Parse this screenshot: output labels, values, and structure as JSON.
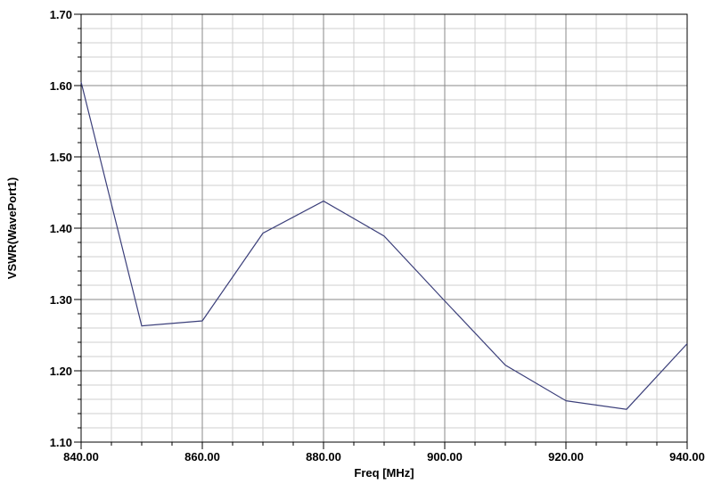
{
  "chart_data": {
    "type": "line",
    "xlabel": "Freq [MHz]",
    "ylabel": "VSWR(WavePort1)",
    "xlim": [
      840,
      940
    ],
    "ylim": [
      1.1,
      1.7
    ],
    "x_ticks": [
      840,
      860,
      880,
      900,
      920,
      940
    ],
    "x_tick_labels": [
      "840.00",
      "860.00",
      "880.00",
      "900.00",
      "920.00",
      "940.00"
    ],
    "y_ticks": [
      1.1,
      1.2,
      1.3,
      1.4,
      1.5,
      1.6,
      1.7
    ],
    "y_tick_labels": [
      "1.10",
      "1.20",
      "1.30",
      "1.40",
      "1.50",
      "1.60",
      "1.70"
    ],
    "grid": true,
    "series": [
      {
        "x": [
          840,
          850,
          860,
          870,
          880,
          890,
          900,
          910,
          920,
          930,
          940
        ],
        "values": [
          1.605,
          1.263,
          1.27,
          1.393,
          1.438,
          1.389,
          1.298,
          1.208,
          1.158,
          1.146,
          1.238
        ],
        "color": "#3b3f7a"
      }
    ]
  }
}
